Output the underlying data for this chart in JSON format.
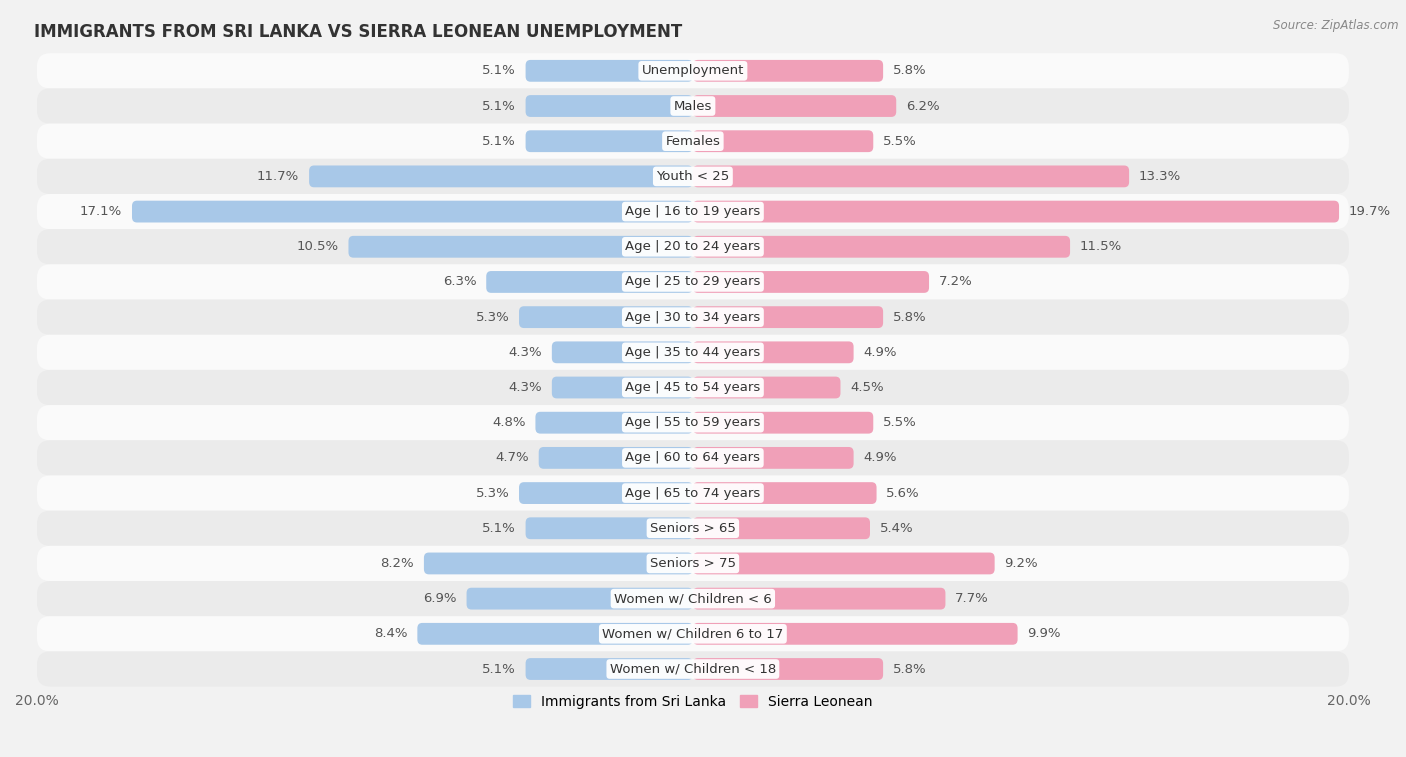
{
  "title": "IMMIGRANTS FROM SRI LANKA VS SIERRA LEONEAN UNEMPLOYMENT",
  "source": "Source: ZipAtlas.com",
  "categories": [
    "Unemployment",
    "Males",
    "Females",
    "Youth < 25",
    "Age | 16 to 19 years",
    "Age | 20 to 24 years",
    "Age | 25 to 29 years",
    "Age | 30 to 34 years",
    "Age | 35 to 44 years",
    "Age | 45 to 54 years",
    "Age | 55 to 59 years",
    "Age | 60 to 64 years",
    "Age | 65 to 74 years",
    "Seniors > 65",
    "Seniors > 75",
    "Women w/ Children < 6",
    "Women w/ Children 6 to 17",
    "Women w/ Children < 18"
  ],
  "sri_lanka": [
    5.1,
    5.1,
    5.1,
    11.7,
    17.1,
    10.5,
    6.3,
    5.3,
    4.3,
    4.3,
    4.8,
    4.7,
    5.3,
    5.1,
    8.2,
    6.9,
    8.4,
    5.1
  ],
  "sierra_leone": [
    5.8,
    6.2,
    5.5,
    13.3,
    19.7,
    11.5,
    7.2,
    5.8,
    4.9,
    4.5,
    5.5,
    4.9,
    5.6,
    5.4,
    9.2,
    7.7,
    9.9,
    5.8
  ],
  "sri_lanka_color": "#a8c8e8",
  "sierra_leone_color": "#f0a0b8",
  "background_color": "#f2f2f2",
  "row_color_light": "#fafafa",
  "row_color_dark": "#ebebeb",
  "xlim": 20.0,
  "bar_height": 0.62,
  "legend_sri_lanka": "Immigrants from Sri Lanka",
  "legend_sierra_leone": "Sierra Leonean",
  "label_fontsize": 9.5,
  "cat_fontsize": 9.5,
  "title_fontsize": 12
}
